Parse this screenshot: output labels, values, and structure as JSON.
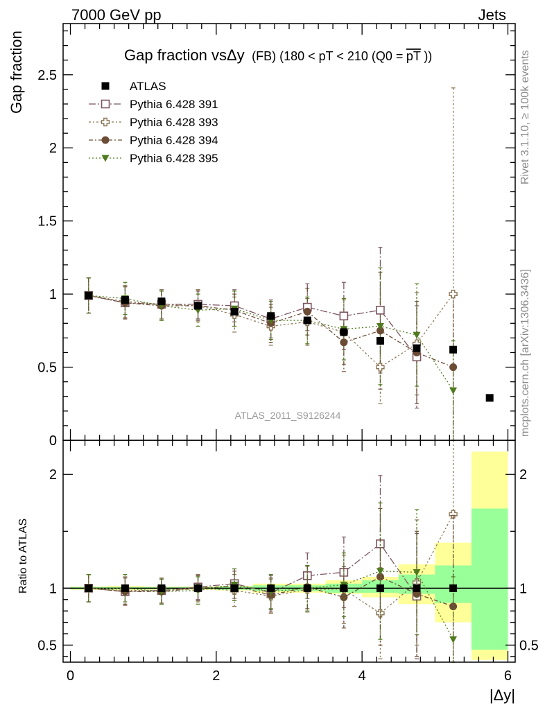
{
  "header": {
    "left": "7000 GeV pp",
    "right": "Jets"
  },
  "side_labels": {
    "rivet": "Rivet 3.1.10, ≥ 100k events",
    "mcplots": "mcplots.cern.ch [arXiv:1306.3436]"
  },
  "chart_data": [
    {
      "type": "scatter",
      "title": "Gap fraction vsΔy (FB) (180 < pT < 210 (Q0 =pT))",
      "title_parts": {
        "main": "Gap fraction vsΔy",
        "paren_prefix": "(FB) (180 < pT < 210 (Q0 =",
        "overlined": "pT",
        "suffix": "))"
      },
      "ylabel": "Gap fraction",
      "xlabel": "|Δy|",
      "watermark": "ATLAS_2011_S9126244",
      "xlim": [
        -0.1,
        6.1
      ],
      "ylim": [
        0,
        2.85
      ],
      "x_ticks": [
        "0",
        "2",
        "4",
        "6"
      ],
      "y_ticks": [
        "0",
        "0.5",
        "1",
        "1.5",
        "2",
        "2.5"
      ],
      "legend_position": "top-left",
      "series": [
        {
          "name": "ATLAS",
          "color": "#000000",
          "marker": "filled-square",
          "x": [
            0.25,
            0.75,
            1.25,
            1.75,
            2.25,
            2.75,
            3.25,
            3.75,
            4.25,
            4.75,
            5.25,
            5.75
          ],
          "y": [
            0.99,
            0.96,
            0.95,
            0.92,
            0.88,
            0.85,
            0.82,
            0.74,
            0.68,
            0.63,
            0.62,
            0.29
          ]
        },
        {
          "name": "Pythia 6.428 391",
          "color": "#7b5660",
          "marker": "open-square",
          "x": [
            0.25,
            0.75,
            1.25,
            1.75,
            2.25,
            2.75,
            3.25,
            3.75,
            4.25,
            4.75
          ],
          "y": [
            0.99,
            0.94,
            0.93,
            0.93,
            0.92,
            0.83,
            0.91,
            0.85,
            0.89,
            0.57
          ],
          "err": [
            0.12,
            0.11,
            0.1,
            0.1,
            0.11,
            0.13,
            0.16,
            0.23,
            0.43,
            0.35
          ]
        },
        {
          "name": "Pythia 6.428 393",
          "color": "#8a7352",
          "marker": "open-cross",
          "x": [
            0.25,
            0.75,
            1.25,
            1.75,
            2.25,
            2.75,
            3.25,
            3.75,
            4.25,
            4.75,
            5.25
          ],
          "y": [
            0.99,
            0.95,
            0.93,
            0.92,
            0.86,
            0.78,
            0.81,
            0.74,
            0.5,
            0.66,
            1.0
          ],
          "err": [
            0.12,
            0.11,
            0.1,
            0.11,
            0.12,
            0.13,
            0.16,
            0.22,
            0.25,
            0.35,
            1.41
          ]
        },
        {
          "name": "Pythia 6.428 394",
          "color": "#6b4c35",
          "marker": "filled-circle",
          "x": [
            0.25,
            0.75,
            1.25,
            1.75,
            2.25,
            2.75,
            3.25,
            3.75,
            4.25,
            4.75,
            5.25
          ],
          "y": [
            0.99,
            0.94,
            0.92,
            0.92,
            0.89,
            0.8,
            0.88,
            0.67,
            0.75,
            0.6,
            0.5
          ],
          "err": [
            0.12,
            0.11,
            0.1,
            0.1,
            0.11,
            0.13,
            0.16,
            0.2,
            0.4,
            0.35,
            0.5
          ]
        },
        {
          "name": "Pythia 6.428 395",
          "color": "#4f7a1f",
          "marker": "filled-triangle-down",
          "x": [
            0.25,
            0.75,
            1.25,
            1.75,
            2.25,
            2.75,
            3.25,
            3.75,
            4.25,
            4.75,
            5.25
          ],
          "y": [
            0.99,
            0.97,
            0.92,
            0.89,
            0.9,
            0.82,
            0.82,
            0.76,
            0.78,
            0.72,
            0.34
          ],
          "err": [
            0.12,
            0.11,
            0.1,
            0.11,
            0.12,
            0.13,
            0.16,
            0.21,
            0.4,
            0.35,
            0.34
          ]
        }
      ]
    },
    {
      "type": "scatter",
      "ylabel": "Ratio to ATLAS",
      "xlabel": "|Δy|",
      "xlim": [
        -0.1,
        6.1
      ],
      "ylim": [
        0.35,
        2.3
      ],
      "x_ticks": [
        "0",
        "2",
        "4",
        "6"
      ],
      "y_ticks": [
        "0.5",
        "1",
        "2"
      ],
      "uncertainty_bands": {
        "colors": {
          "yellow": "#ffff99",
          "green": "#99ff99"
        },
        "edges": [
          0,
          0.5,
          1.0,
          1.5,
          2.0,
          2.5,
          3.0,
          3.5,
          4.0,
          4.5,
          5.0,
          5.5,
          6.0
        ],
        "yellow": [
          [
            0.985,
            1.015
          ],
          [
            0.98,
            1.02
          ],
          [
            0.985,
            1.015
          ],
          [
            0.985,
            1.015
          ],
          [
            0.98,
            1.02
          ],
          [
            0.96,
            1.04
          ],
          [
            0.96,
            1.04
          ],
          [
            0.95,
            1.07
          ],
          [
            0.92,
            1.1
          ],
          [
            0.86,
            1.21
          ],
          [
            0.7,
            1.4
          ],
          [
            0.37,
            2.2
          ]
        ],
        "green": [
          [
            0.99,
            1.01
          ],
          [
            0.99,
            1.01
          ],
          [
            0.99,
            1.01
          ],
          [
            0.99,
            1.01
          ],
          [
            0.985,
            1.015
          ],
          [
            0.975,
            1.025
          ],
          [
            0.975,
            1.025
          ],
          [
            0.96,
            1.04
          ],
          [
            0.96,
            1.07
          ],
          [
            0.95,
            1.12
          ],
          [
            0.87,
            1.2
          ],
          [
            0.46,
            1.7
          ]
        ]
      },
      "series": [
        {
          "name": "Pythia 6.428 391",
          "x": [
            0.25,
            0.75,
            1.25,
            1.75,
            2.25,
            2.75,
            3.25,
            3.75,
            4.25,
            4.75
          ],
          "y": [
            1.0,
            0.97,
            0.98,
            1.01,
            1.04,
            0.96,
            1.11,
            1.14,
            1.39,
            0.93
          ],
          "err": [
            0.12,
            0.12,
            0.11,
            0.11,
            0.13,
            0.15,
            0.2,
            0.31,
            0.6,
            0.55
          ]
        },
        {
          "name": "Pythia 6.428 393",
          "x": [
            0.25,
            0.75,
            1.25,
            1.75,
            2.25,
            2.75,
            3.25,
            3.75,
            4.25,
            4.75,
            5.25
          ],
          "y": [
            1.0,
            0.98,
            0.98,
            1.0,
            0.98,
            0.93,
            0.99,
            0.99,
            0.78,
            1.05,
            1.65
          ],
          "err": [
            0.12,
            0.12,
            0.11,
            0.12,
            0.14,
            0.15,
            0.2,
            0.3,
            0.4,
            0.55,
            2.3
          ]
        },
        {
          "name": "Pythia 6.428 394",
          "x": [
            0.25,
            0.75,
            1.25,
            1.75,
            2.25,
            2.75,
            3.25,
            3.75,
            4.25,
            4.75,
            5.25
          ],
          "y": [
            1.0,
            0.97,
            0.97,
            1.0,
            1.02,
            0.94,
            1.01,
            0.92,
            1.1,
            0.95,
            0.84
          ],
          "err": [
            0.12,
            0.12,
            0.11,
            0.11,
            0.13,
            0.15,
            0.19,
            0.27,
            0.6,
            0.55,
            0.8
          ]
        },
        {
          "name": "Pythia 6.428 395",
          "x": [
            0.25,
            0.75,
            1.25,
            1.75,
            2.25,
            2.75,
            3.25,
            3.75,
            4.25,
            4.75,
            5.25
          ],
          "y": [
            1.0,
            1.0,
            0.97,
            0.98,
            1.03,
            0.97,
            1.0,
            1.03,
            1.15,
            1.14,
            0.55
          ],
          "err": [
            0.12,
            0.12,
            0.11,
            0.12,
            0.14,
            0.15,
            0.2,
            0.28,
            0.6,
            0.55,
            0.55
          ]
        }
      ]
    }
  ]
}
